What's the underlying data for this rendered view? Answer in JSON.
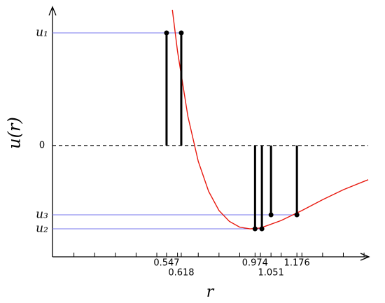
{
  "chart_data": {
    "type": "potential",
    "xlabel": "r",
    "ylabel": "u(r)",
    "xlim": [
      0,
      1.52
    ],
    "ylim": [
      -1.336,
      1.647
    ],
    "xticks": [
      0.547,
      0.618,
      0.974,
      1.051,
      1.176
    ],
    "xminorticks": [
      0.1,
      0.2,
      0.3,
      0.4,
      0.5,
      0.6,
      0.7,
      0.8,
      0.9,
      1.0,
      1.1,
      1.2,
      1.3,
      1.4,
      1.5
    ],
    "yticks": [
      {
        "value": 1.353,
        "label": "u₁"
      },
      {
        "value": 0,
        "label": "0"
      },
      {
        "value": -0.832,
        "label": "u₃"
      },
      {
        "value": -1,
        "label": "u₂"
      }
    ],
    "curve": {
      "color": "#e8190f",
      "x": [
        0.575,
        0.6,
        0.65,
        0.7,
        0.75,
        0.8,
        0.85,
        0.9,
        0.95,
        1.0,
        1.1,
        1.2,
        1.3,
        1.4,
        1.52
      ],
      "values": [
        1.63,
        1.13,
        0.35,
        -0.19,
        -0.55,
        -0.78,
        -0.91,
        -0.98,
        -1,
        -0.99,
        -0.9,
        -0.78,
        -0.65,
        -0.53,
        -0.41
      ]
    },
    "stems": {
      "color": "#000000",
      "x": [
        0.547,
        0.618,
        0.974,
        1.007,
        1.051,
        1.176
      ],
      "values": [
        1.353,
        1.353,
        -1,
        -1,
        -0.832,
        -0.832
      ]
    },
    "level_color": "#7777ee"
  }
}
